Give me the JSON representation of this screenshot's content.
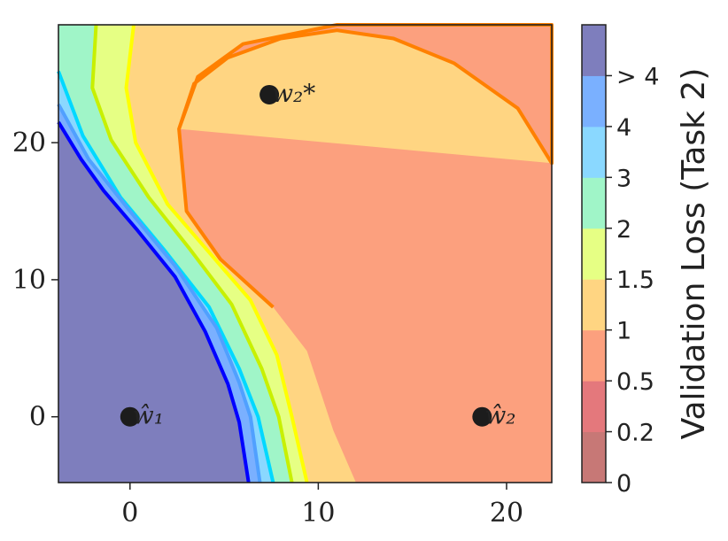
{
  "chart_data": {
    "type": "contour",
    "xlim": [
      -3.8,
      22.4
    ],
    "ylim": [
      -4.8,
      28.6
    ],
    "x_ticks": [
      0,
      10,
      20
    ],
    "y_ticks": [
      0,
      10,
      20
    ],
    "colorbar": {
      "label": "Validation Loss (Task 2)",
      "levels": [
        "0",
        "0.2",
        "0.5",
        "1",
        "1.5",
        "2",
        "3",
        "4",
        "> 4"
      ],
      "colors": [
        "#c77876",
        "#e4787c",
        "#fca07e",
        "#ffd582",
        "#e6ff84",
        "#a0f5c8",
        "#8ad8ff",
        "#7ab0ff",
        "#7e7ebd"
      ]
    },
    "contours": [
      {
        "level": "0.5–1",
        "fill": "#fca07e",
        "edge": "#ff8000",
        "points": [
          [
            2.6,
            21
          ],
          [
            3.6,
            24.8
          ],
          [
            6,
            27.2
          ],
          [
            11,
            28.6
          ],
          [
            22.4,
            28.6
          ],
          [
            22.4,
            18.5
          ],
          [
            20.6,
            22.5
          ],
          [
            17.2,
            25.8
          ],
          [
            14,
            27.6
          ],
          [
            11,
            28.2
          ],
          [
            8,
            27.6
          ],
          [
            5.2,
            26.2
          ],
          [
            3.4,
            24.3
          ],
          [
            2.6,
            21
          ],
          [
            3.0,
            15
          ],
          [
            4.8,
            11.5
          ],
          [
            7.6,
            8
          ],
          [
            9.4,
            4.8
          ],
          [
            10.8,
            -1
          ],
          [
            12,
            -4.8
          ],
          [
            22.4,
            -4.8
          ],
          [
            22.4,
            18.5
          ]
        ]
      },
      {
        "level": "1–1.5",
        "edge": "#ffff00",
        "points": [
          [
            0.2,
            28.6
          ],
          [
            -0.2,
            24
          ],
          [
            0.3,
            20
          ],
          [
            2.0,
            15.5
          ],
          [
            4.2,
            12
          ],
          [
            6.4,
            8.5
          ],
          [
            7.8,
            4.5
          ],
          [
            8.6,
            0
          ],
          [
            9.4,
            -4.8
          ]
        ]
      },
      {
        "level": "1.5–2",
        "edge": "#c8f000",
        "points": [
          [
            -1.8,
            28.6
          ],
          [
            -2.0,
            24
          ],
          [
            -1.0,
            20.2
          ],
          [
            1.0,
            16
          ],
          [
            3.2,
            12.2
          ],
          [
            5.4,
            8.2
          ],
          [
            7.0,
            3.5
          ],
          [
            7.9,
            0
          ],
          [
            8.6,
            -4.8
          ]
        ]
      },
      {
        "level": "2–3",
        "edge": "#00d8ff",
        "points": [
          [
            -3.8,
            25.2
          ],
          [
            -2.5,
            20.5
          ],
          [
            -0.5,
            16
          ],
          [
            1.8,
            12.2
          ],
          [
            4.2,
            8
          ],
          [
            5.8,
            3.5
          ],
          [
            6.8,
            0
          ],
          [
            7.6,
            -4.8
          ]
        ]
      },
      {
        "level": "3–4",
        "edge": "#50a0ff",
        "points": [
          [
            -3.8,
            22.8
          ],
          [
            -2.2,
            18.8
          ],
          [
            0,
            15
          ],
          [
            2.4,
            11
          ],
          [
            4.6,
            6.5
          ],
          [
            5.8,
            2.5
          ],
          [
            6.4,
            0
          ],
          [
            6.9,
            -4.8
          ]
        ]
      },
      {
        "level": "4",
        "edge": "#0000ff",
        "points": [
          [
            -3.8,
            21.5
          ],
          [
            -2.6,
            18.8
          ],
          [
            -1.4,
            16.5
          ],
          [
            0.4,
            13.6
          ],
          [
            2.4,
            10.2
          ],
          [
            4.0,
            6.2
          ],
          [
            5.2,
            2.4
          ],
          [
            5.8,
            -0.4
          ],
          [
            6.3,
            -4.8
          ]
        ]
      }
    ],
    "points": [
      {
        "label": "ŵ₁",
        "x": 0,
        "y": 0
      },
      {
        "label": "ŵ₂",
        "x": 18.7,
        "y": 0
      },
      {
        "label": "w₂*",
        "x": 7.4,
        "y": 23.5
      }
    ]
  }
}
